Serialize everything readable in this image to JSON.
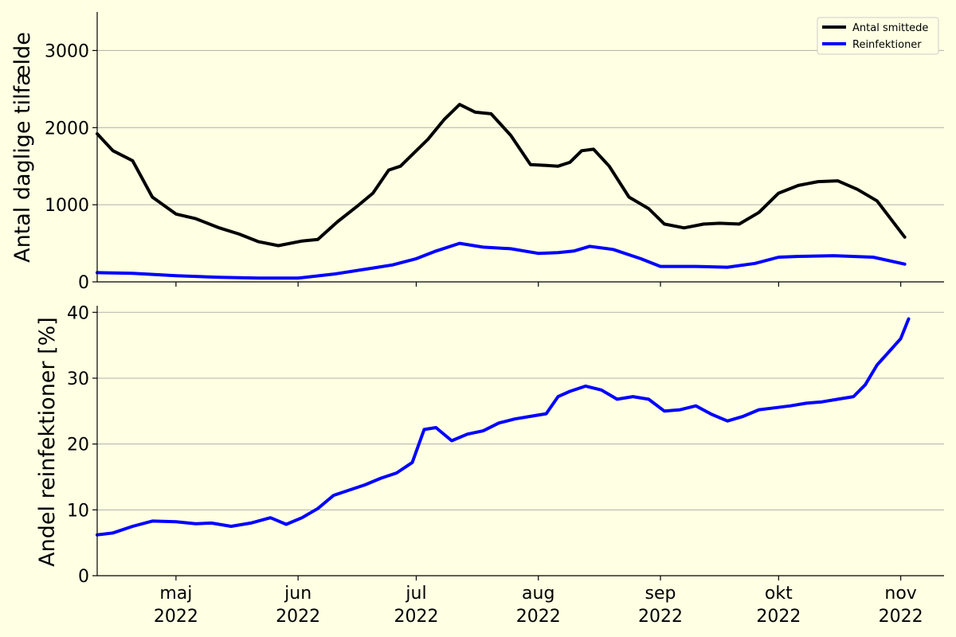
{
  "background": "#ffffe3",
  "chart_data": [
    {
      "type": "line",
      "title": "",
      "xlabel": "",
      "ylabel": "Antal daglige tilfælde",
      "ylim": [
        0,
        3500
      ],
      "yticks": [
        0,
        1000,
        2000,
        3000
      ],
      "grid": "y",
      "legend_position": "top-right",
      "x_ticks": [
        {
          "date": "2022-05-01",
          "month": "maj",
          "year": "2022"
        },
        {
          "date": "2022-06-01",
          "month": "jun",
          "year": "2022"
        },
        {
          "date": "2022-07-01",
          "month": "jul",
          "year": "2022"
        },
        {
          "date": "2022-08-01",
          "month": "aug",
          "year": "2022"
        },
        {
          "date": "2022-09-01",
          "month": "sep",
          "year": "2022"
        },
        {
          "date": "2022-10-01",
          "month": "okt",
          "year": "2022"
        },
        {
          "date": "2022-11-01",
          "month": "nov",
          "year": "2022"
        }
      ],
      "xlim": [
        "2022-04-11",
        "2022-11-12"
      ],
      "series": [
        {
          "name": "Antal smittede",
          "color": "#000000",
          "style": "thick smoothed line with daily points",
          "x": [
            "2022-04-11",
            "2022-04-15",
            "2022-04-20",
            "2022-04-25",
            "2022-05-01",
            "2022-05-06",
            "2022-05-12",
            "2022-05-17",
            "2022-05-22",
            "2022-05-27",
            "2022-06-02",
            "2022-06-06",
            "2022-06-11",
            "2022-06-16",
            "2022-06-20",
            "2022-06-24",
            "2022-06-27",
            "2022-06-30",
            "2022-07-04",
            "2022-07-08",
            "2022-07-12",
            "2022-07-16",
            "2022-07-20",
            "2022-07-25",
            "2022-07-30",
            "2022-08-03",
            "2022-08-06",
            "2022-08-09",
            "2022-08-12",
            "2022-08-15",
            "2022-08-19",
            "2022-08-24",
            "2022-08-29",
            "2022-09-02",
            "2022-09-07",
            "2022-09-12",
            "2022-09-16",
            "2022-09-21",
            "2022-09-26",
            "2022-10-01",
            "2022-10-06",
            "2022-10-11",
            "2022-10-16",
            "2022-10-21",
            "2022-10-26",
            "2022-11-02"
          ],
          "values": [
            1920,
            1700,
            1570,
            1100,
            880,
            820,
            700,
            620,
            520,
            470,
            530,
            550,
            780,
            980,
            1150,
            1450,
            1500,
            1650,
            1850,
            2100,
            2300,
            2200,
            2180,
            1900,
            1520,
            1510,
            1500,
            1550,
            1700,
            1720,
            1500,
            1100,
            950,
            750,
            700,
            750,
            760,
            750,
            900,
            1150,
            1250,
            1300,
            1310,
            1200,
            1050,
            580
          ]
        },
        {
          "name": "Reinfektioner",
          "color": "#0000ff",
          "style": "thick smoothed line with daily points",
          "x": [
            "2022-04-11",
            "2022-04-20",
            "2022-05-01",
            "2022-05-12",
            "2022-05-22",
            "2022-06-01",
            "2022-06-10",
            "2022-06-20",
            "2022-06-25",
            "2022-07-01",
            "2022-07-06",
            "2022-07-12",
            "2022-07-18",
            "2022-07-25",
            "2022-08-01",
            "2022-08-06",
            "2022-08-10",
            "2022-08-14",
            "2022-08-20",
            "2022-08-27",
            "2022-09-01",
            "2022-09-10",
            "2022-09-18",
            "2022-09-25",
            "2022-10-01",
            "2022-10-06",
            "2022-10-15",
            "2022-10-25",
            "2022-11-02"
          ],
          "values": [
            120,
            110,
            80,
            60,
            50,
            50,
            100,
            180,
            220,
            300,
            400,
            500,
            450,
            430,
            370,
            380,
            400,
            460,
            420,
            300,
            200,
            200,
            190,
            240,
            320,
            330,
            340,
            320,
            230
          ]
        }
      ]
    },
    {
      "type": "line",
      "title": "",
      "xlabel": "",
      "ylabel": "Andel reinfektioner [%]",
      "ylim": [
        0,
        41
      ],
      "yticks": [
        0,
        10,
        20,
        30,
        40
      ],
      "grid": "y",
      "x_ticks": [
        {
          "date": "2022-05-01",
          "month": "maj",
          "year": "2022"
        },
        {
          "date": "2022-06-01",
          "month": "jun",
          "year": "2022"
        },
        {
          "date": "2022-07-01",
          "month": "jul",
          "year": "2022"
        },
        {
          "date": "2022-08-01",
          "month": "aug",
          "year": "2022"
        },
        {
          "date": "2022-09-01",
          "month": "sep",
          "year": "2022"
        },
        {
          "date": "2022-10-01",
          "month": "okt",
          "year": "2022"
        },
        {
          "date": "2022-11-01",
          "month": "nov",
          "year": "2022"
        }
      ],
      "month_labels": [
        "maj",
        "jun",
        "jul",
        "aug",
        "sep",
        "okt",
        "nov"
      ],
      "year_label": "2022",
      "xlim": [
        "2022-04-11",
        "2022-11-12"
      ],
      "series": [
        {
          "name": "Reinfektioner",
          "color": "#0000ff",
          "x": [
            "2022-04-11",
            "2022-04-15",
            "2022-04-20",
            "2022-04-25",
            "2022-05-01",
            "2022-05-06",
            "2022-05-10",
            "2022-05-15",
            "2022-05-20",
            "2022-05-25",
            "2022-05-29",
            "2022-06-02",
            "2022-06-06",
            "2022-06-10",
            "2022-06-14",
            "2022-06-18",
            "2022-06-22",
            "2022-06-26",
            "2022-06-30",
            "2022-07-03",
            "2022-07-06",
            "2022-07-10",
            "2022-07-14",
            "2022-07-18",
            "2022-07-22",
            "2022-07-26",
            "2022-07-30",
            "2022-08-03",
            "2022-08-06",
            "2022-08-09",
            "2022-08-13",
            "2022-08-17",
            "2022-08-21",
            "2022-08-25",
            "2022-08-29",
            "2022-09-02",
            "2022-09-06",
            "2022-09-10",
            "2022-09-14",
            "2022-09-18",
            "2022-09-22",
            "2022-09-26",
            "2022-09-30",
            "2022-10-04",
            "2022-10-08",
            "2022-10-12",
            "2022-10-16",
            "2022-10-20",
            "2022-10-23",
            "2022-10-26",
            "2022-10-29",
            "2022-11-01",
            "2022-11-03"
          ],
          "values": [
            6.2,
            6.5,
            7.5,
            8.3,
            8.2,
            7.9,
            8.0,
            7.5,
            8.0,
            8.8,
            7.8,
            8.8,
            10.2,
            12.2,
            13.0,
            13.8,
            14.8,
            15.6,
            17.2,
            22.2,
            22.5,
            20.5,
            21.5,
            22.0,
            23.2,
            23.8,
            24.2,
            24.6,
            27.2,
            28.0,
            28.8,
            28.2,
            26.8,
            27.2,
            26.8,
            25.0,
            25.2,
            25.8,
            24.5,
            23.5,
            24.2,
            25.2,
            25.5,
            25.8,
            26.2,
            26.4,
            26.8,
            27.2,
            29.0,
            32.0,
            34.0,
            36.0,
            39.0
          ]
        }
      ]
    }
  ]
}
